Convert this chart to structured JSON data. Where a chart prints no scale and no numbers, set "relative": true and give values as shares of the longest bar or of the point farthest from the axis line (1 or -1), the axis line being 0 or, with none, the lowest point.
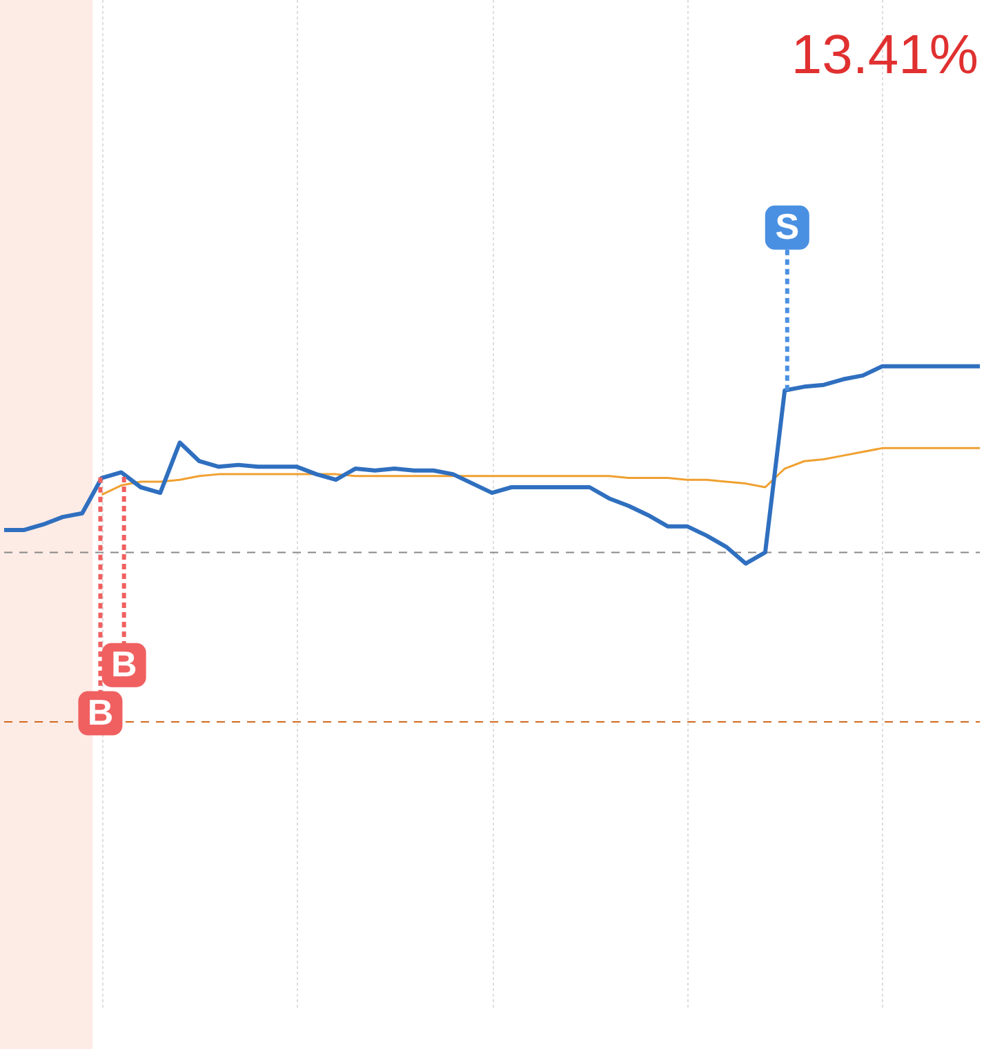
{
  "chart_data": {
    "type": "line",
    "relative": true,
    "marker": "none",
    "grid": "x",
    "legend": false,
    "categories": [
      null,
      null,
      null,
      null,
      null,
      null,
      null,
      null,
      null,
      null,
      null,
      null,
      null,
      null,
      null,
      null,
      null,
      null,
      null,
      null,
      null,
      null,
      null,
      null,
      null,
      null,
      null,
      null,
      null,
      null,
      null,
      null,
      null,
      null,
      null,
      null,
      null,
      null,
      null,
      null,
      null,
      null,
      null,
      null,
      null,
      null,
      null,
      null,
      null,
      null,
      null
    ],
    "series": [
      {
        "color": "#2f6fbf",
        "values": [
          0.12,
          0.12,
          0.15,
          0.19,
          0.21,
          0.4,
          0.43,
          0.35,
          0.32,
          0.59,
          0.49,
          0.46,
          0.47,
          0.46,
          0.46,
          0.46,
          0.42,
          0.39,
          0.45,
          0.44,
          0.45,
          0.44,
          0.44,
          0.42,
          0.37,
          0.32,
          0.35,
          0.35,
          0.35,
          0.35,
          0.35,
          0.29,
          0.25,
          0.2,
          0.14,
          0.14,
          0.09,
          0.03,
          -0.06,
          0,
          0.87,
          0.89,
          0.9,
          0.93,
          0.95,
          1,
          1,
          1,
          1,
          1,
          1
        ]
      },
      {
        "color": "#f0a030",
        "values": [
          null,
          null,
          null,
          null,
          null,
          0.31,
          0.36,
          0.38,
          0.38,
          0.39,
          0.41,
          0.42,
          0.42,
          0.42,
          0.42,
          0.42,
          0.42,
          0.42,
          0.41,
          0.41,
          0.41,
          0.41,
          0.41,
          0.41,
          0.41,
          0.41,
          0.41,
          0.41,
          0.41,
          0.41,
          0.41,
          0.41,
          0.4,
          0.4,
          0.4,
          0.39,
          0.39,
          0.38,
          0.37,
          0.35,
          0.45,
          0.49,
          0.5,
          0.52,
          0.54,
          0.56,
          0.56,
          0.56,
          0.56,
          0.56,
          0.56
        ]
      }
    ],
    "ref_lines": [
      {
        "axis": "y",
        "value": 0,
        "color": "#888888",
        "line_style": "dashed"
      },
      {
        "axis": "y",
        "value": -0.91,
        "color": "#d2691e",
        "line_style": "dashed"
      }
    ],
    "annotations": [
      "13.41%",
      "B",
      "B",
      "S"
    ]
  }
}
